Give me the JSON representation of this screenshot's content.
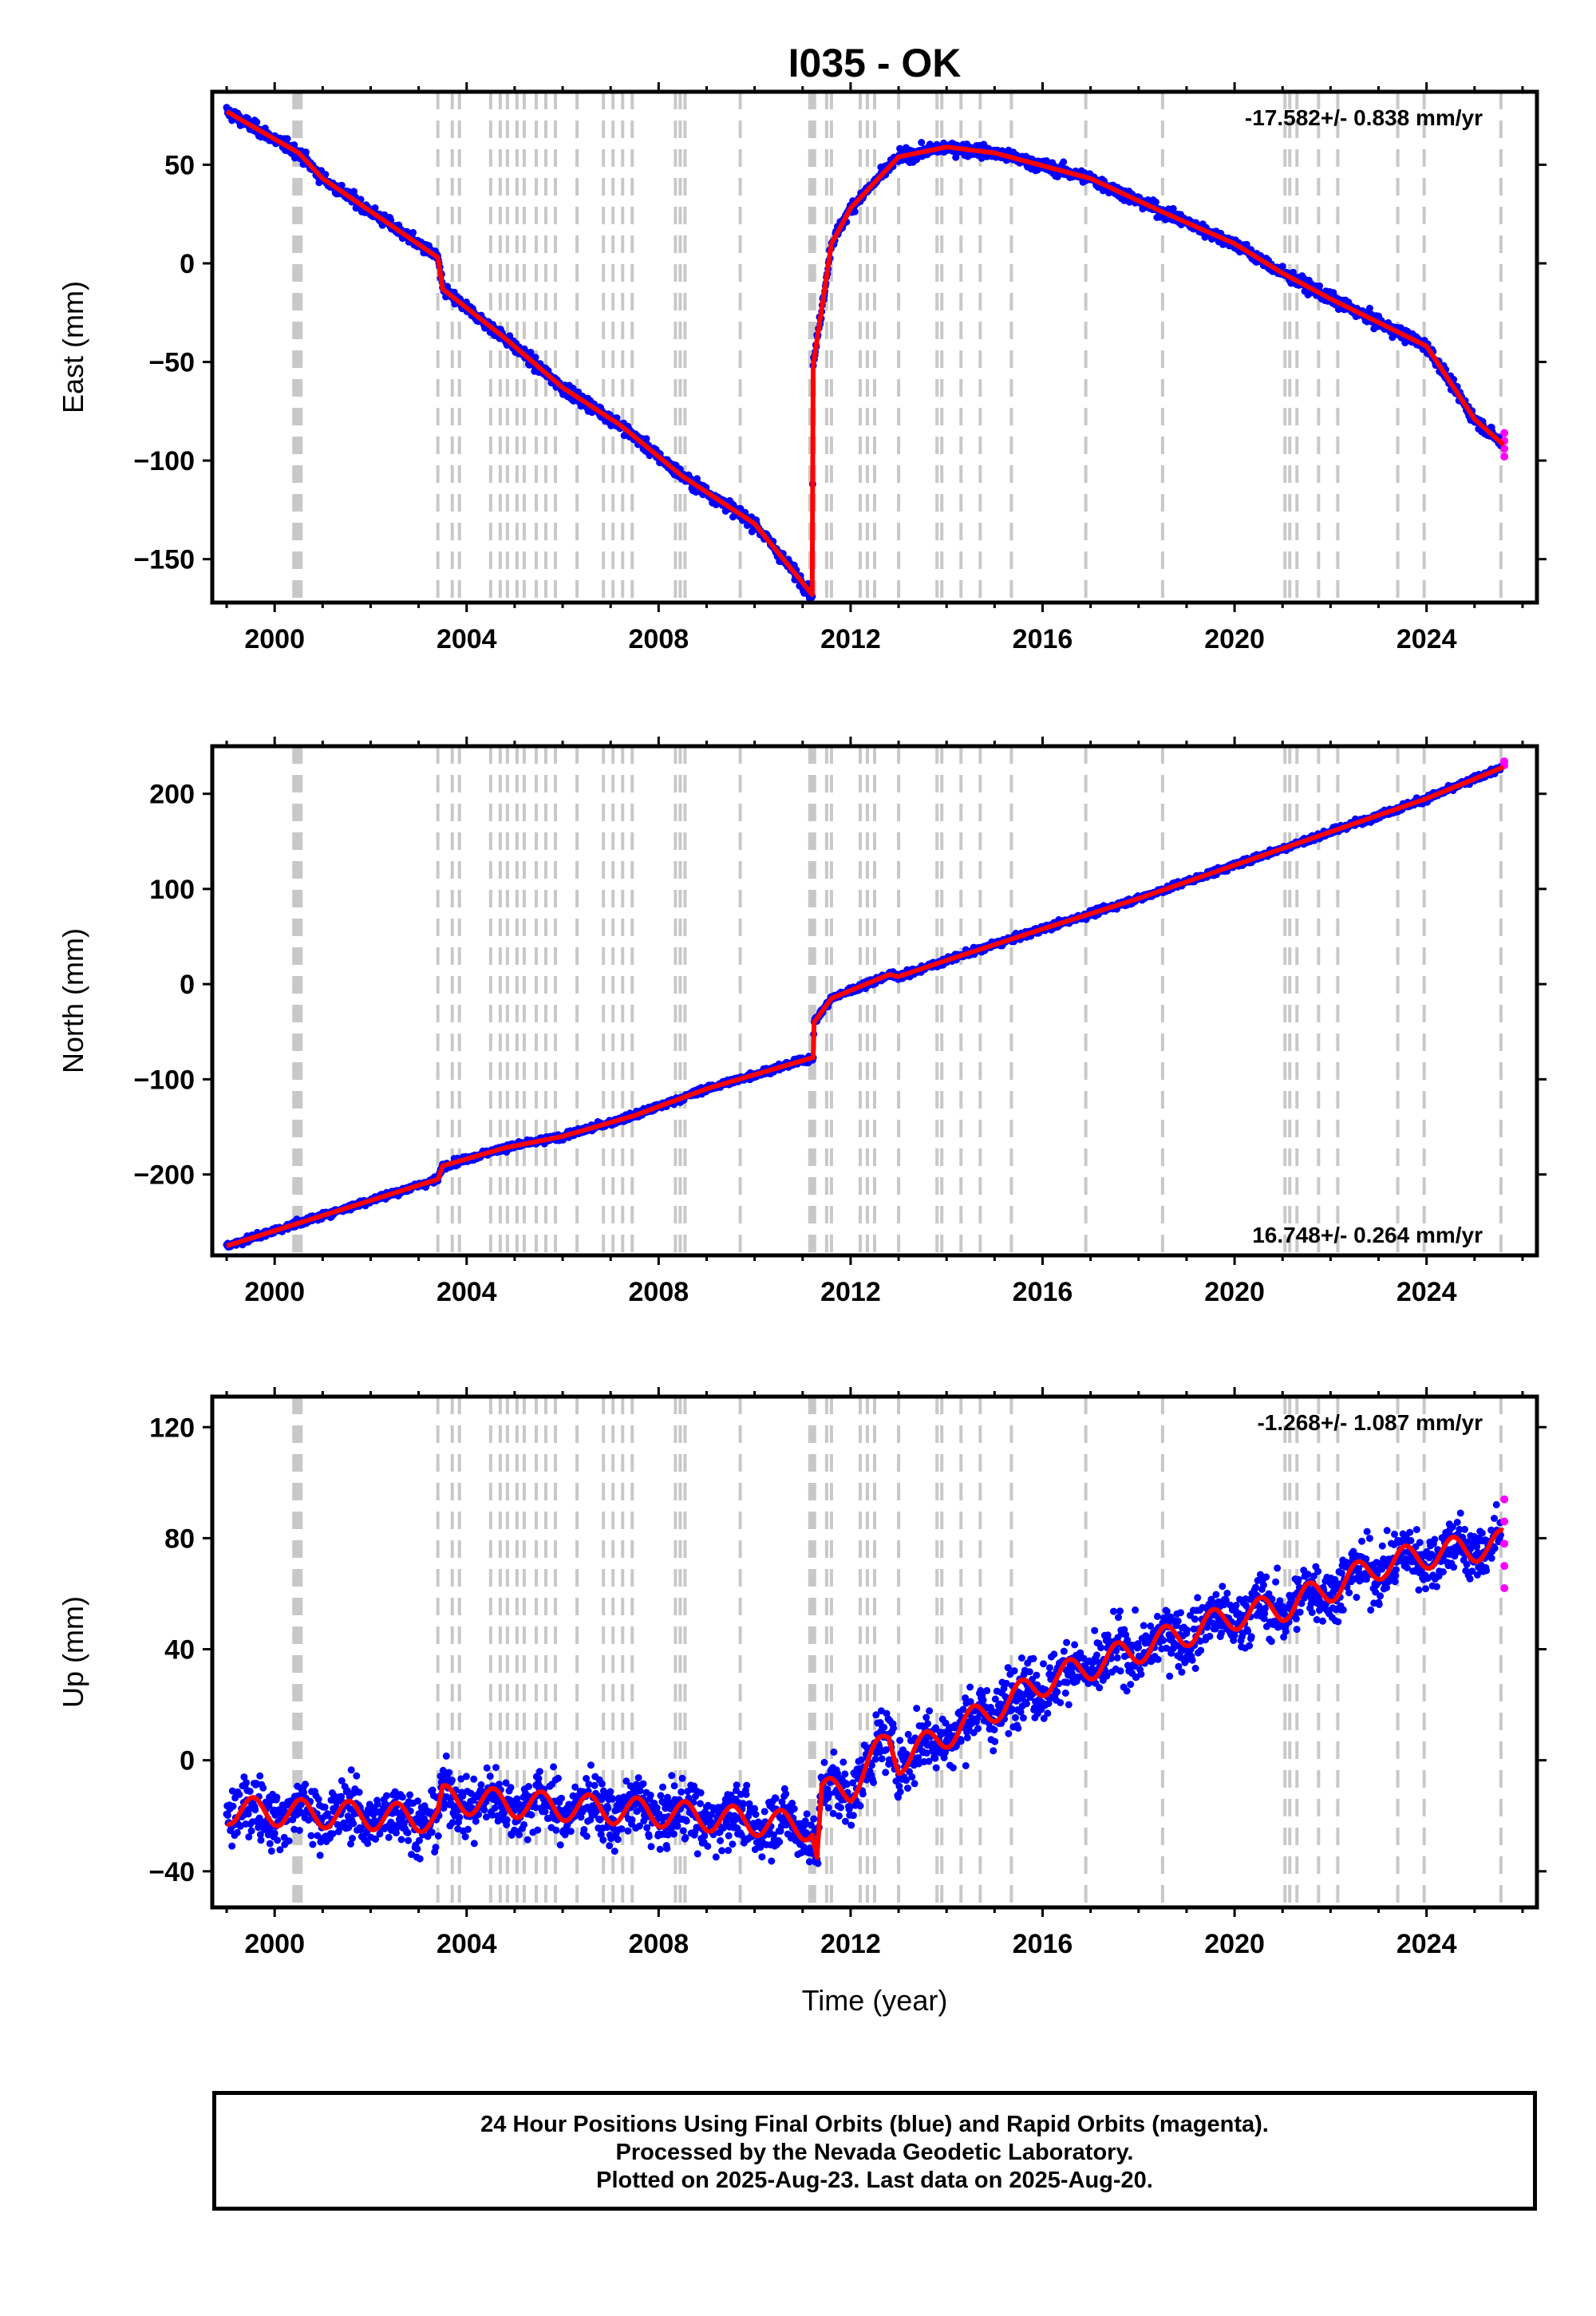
{
  "title": "I035 - OK",
  "xlabel": "Time (year)",
  "footer": {
    "line1": "24 Hour Positions Using Final Orbits (blue) and Rapid Orbits (magenta).",
    "line2": "Processed by the Nevada Geodetic Laboratory.",
    "line3": "Plotted on 2025-Aug-23. Last data on 2025-Aug-20."
  },
  "colors": {
    "final_orbits": "#0000ff",
    "rapid_orbits": "#ff00ff",
    "model": "#ff0000",
    "steps": "#c8c8c8"
  },
  "chart_data": [
    {
      "type": "scatter",
      "component": "east",
      "ylabel": "East (mm)",
      "rate": "-17.582+/- 0.838 mm/yr",
      "rate_position": "top-right",
      "xlim": [
        1998.7,
        2026.3
      ],
      "ylim": [
        -172,
        87
      ],
      "xticks": [
        2000,
        2004,
        2008,
        2012,
        2016,
        2020,
        2024
      ],
      "yticks": [
        -150,
        -100,
        -50,
        0,
        50
      ],
      "model_trend": [
        [
          1999.0,
          77
        ],
        [
          2000.5,
          56
        ],
        [
          2001.0,
          43
        ],
        [
          2003.4,
          3
        ],
        [
          2003.5,
          -13
        ],
        [
          2004.8,
          -38
        ],
        [
          2006.0,
          -63
        ],
        [
          2007.2,
          -82
        ],
        [
          2008.5,
          -108
        ],
        [
          2010.0,
          -132
        ],
        [
          2011.2,
          -168
        ],
        [
          2011.22,
          -52
        ],
        [
          2011.6,
          10
        ],
        [
          2012.0,
          28
        ],
        [
          2013.0,
          54
        ],
        [
          2014.0,
          59
        ],
        [
          2015.0,
          56
        ],
        [
          2017.0,
          43
        ],
        [
          2018.5,
          26
        ],
        [
          2020.0,
          10
        ],
        [
          2021.0,
          -5
        ],
        [
          2022.0,
          -18
        ],
        [
          2023.5,
          -36
        ],
        [
          2024.0,
          -42
        ],
        [
          2025.0,
          -79
        ],
        [
          2025.6,
          -92
        ]
      ],
      "rapid_orbits_y": [
        -86,
        -90,
        -94,
        -98
      ]
    },
    {
      "type": "scatter",
      "component": "north",
      "ylabel": "North (mm)",
      "rate": "16.748+/- 0.264 mm/yr",
      "rate_position": "bottom-right",
      "xlim": [
        1998.7,
        2026.3
      ],
      "ylim": [
        -285,
        250
      ],
      "xticks": [
        2000,
        2004,
        2008,
        2012,
        2016,
        2020,
        2024
      ],
      "yticks": [
        -200,
        -100,
        0,
        100,
        200
      ],
      "model_trend": [
        [
          1999.0,
          -275
        ],
        [
          2003.4,
          -205
        ],
        [
          2003.5,
          -191
        ],
        [
          2004.8,
          -172
        ],
        [
          2006.0,
          -160
        ],
        [
          2007.5,
          -138
        ],
        [
          2009.0,
          -110
        ],
        [
          2011.22,
          -77
        ],
        [
          2011.24,
          -40
        ],
        [
          2011.6,
          -15
        ],
        [
          2012.8,
          10
        ],
        [
          2013.0,
          8
        ],
        [
          2014.0,
          25
        ],
        [
          2016.0,
          58
        ],
        [
          2018.0,
          90
        ],
        [
          2020.0,
          125
        ],
        [
          2022.0,
          160
        ],
        [
          2024.0,
          195
        ],
        [
          2025.6,
          228
        ]
      ],
      "rapid_orbits_y": [
        230,
        234
      ]
    },
    {
      "type": "scatter",
      "component": "up",
      "ylabel": "Up (mm)",
      "rate": "-1.268+/- 1.087 mm/yr",
      "rate_position": "top-right",
      "xlim": [
        1998.7,
        2026.3
      ],
      "ylim": [
        -53,
        131
      ],
      "xticks": [
        2000,
        2004,
        2008,
        2012,
        2016,
        2020,
        2024
      ],
      "yticks": [
        -40,
        0,
        40,
        80,
        120
      ],
      "model_trend": [
        [
          1999.0,
          -18
        ],
        [
          2003.4,
          -21
        ],
        [
          2003.5,
          -14
        ],
        [
          2008.0,
          -19
        ],
        [
          2011.2,
          -24
        ],
        [
          2011.3,
          -35
        ],
        [
          2011.4,
          -12
        ],
        [
          2012.0,
          -10
        ],
        [
          2012.8,
          8
        ],
        [
          2013.0,
          0
        ],
        [
          2016.0,
          28
        ],
        [
          2020.0,
          52
        ],
        [
          2021.0,
          55
        ],
        [
          2022.0,
          62
        ],
        [
          2023.0,
          70
        ],
        [
          2024.0,
          74
        ],
        [
          2025.6,
          78
        ]
      ],
      "rapid_orbits_y": [
        62,
        70,
        78,
        86,
        94
      ]
    }
  ],
  "step_epochs": [
    2000.4,
    2000.45,
    2000.5,
    2000.55,
    2003.4,
    2003.7,
    2003.85,
    2004.5,
    2004.7,
    2004.85,
    2005.05,
    2005.2,
    2005.45,
    2005.65,
    2005.85,
    2006.3,
    2006.85,
    2007.05,
    2007.25,
    2007.45,
    2008.35,
    2008.45,
    2008.55,
    2009.7,
    2011.15,
    2011.2,
    2011.25,
    2011.5,
    2011.6,
    2012.2,
    2012.35,
    2012.5,
    2013.0,
    2013.8,
    2013.9,
    2014.3,
    2014.7,
    2015.35,
    2016.9,
    2018.5,
    2021.05,
    2021.15,
    2021.3,
    2021.75,
    2022.15,
    2023.4,
    2023.95,
    2025.55
  ]
}
